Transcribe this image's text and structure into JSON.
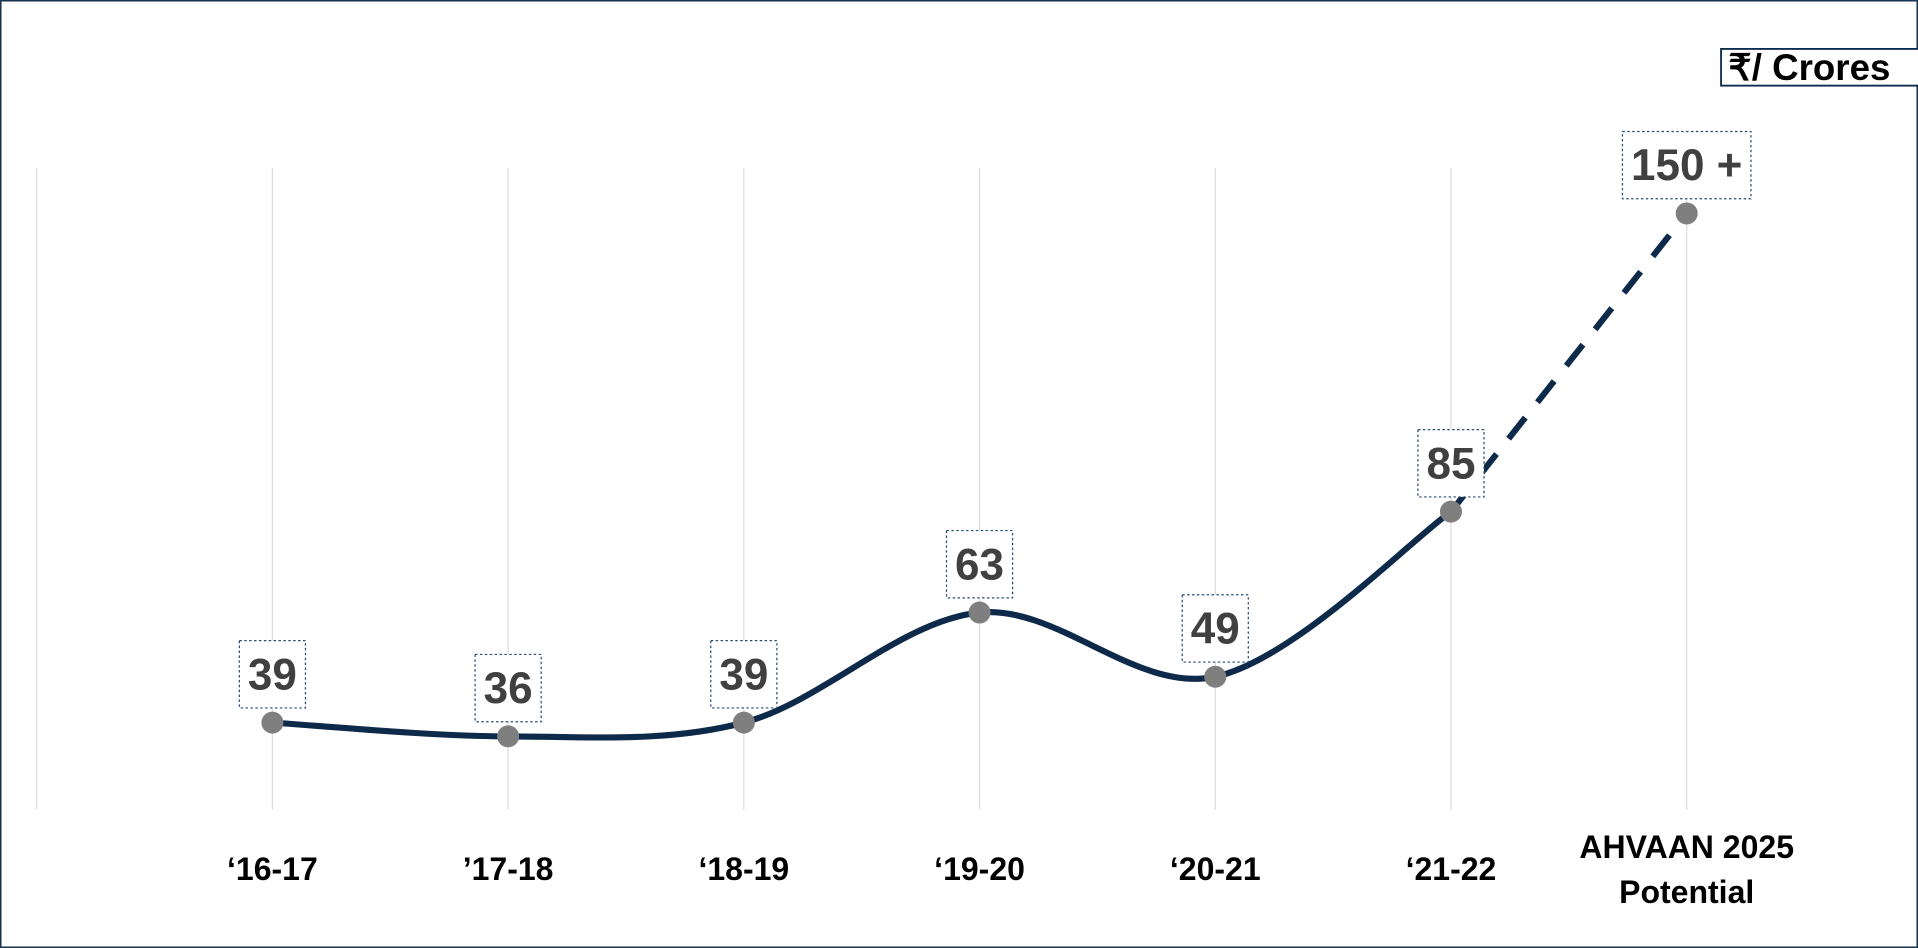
{
  "chart_data": {
    "type": "line",
    "unit_label": "₹/ Crores",
    "categories": [
      "‘16-17",
      "’17-18",
      "‘18-19",
      "‘19-20",
      "‘20-21",
      "‘21-22",
      "AHVAAN 2025 Potential"
    ],
    "series": [
      {
        "color": "#0d2a4a",
        "values": [
          39,
          36,
          39,
          63,
          49,
          85,
          150
        ],
        "value_labels": [
          "39",
          "36",
          "39",
          "63",
          "49",
          "85",
          "150 +"
        ]
      }
    ],
    "marker_color": "#7f7f7f",
    "projected_from_index": 5,
    "smooth": true,
    "ylim": [
      20,
      160
    ],
    "grid": true
  }
}
